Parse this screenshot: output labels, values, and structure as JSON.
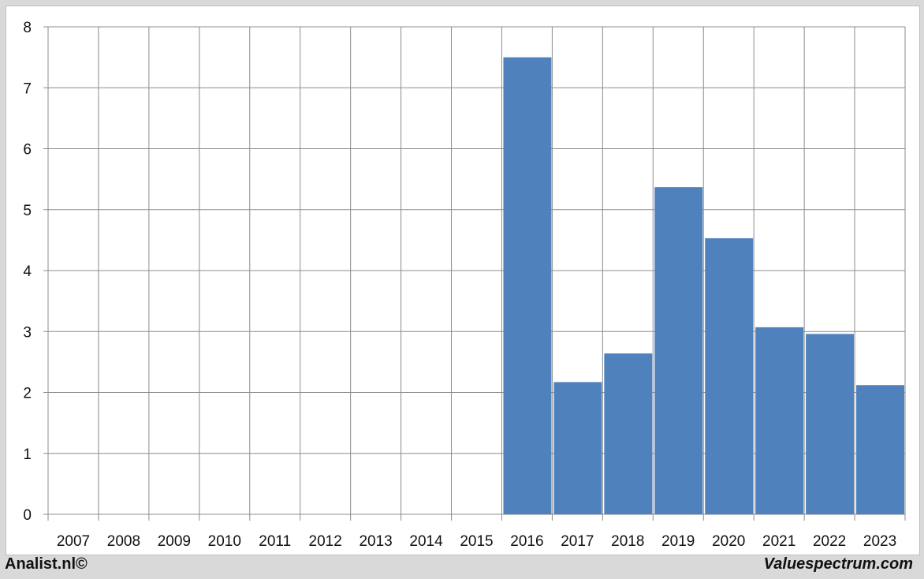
{
  "chart_data": {
    "type": "bar",
    "categories": [
      "2007",
      "2008",
      "2009",
      "2010",
      "2011",
      "2012",
      "2013",
      "2014",
      "2015",
      "2016",
      "2017",
      "2018",
      "2019",
      "2020",
      "2021",
      "2022",
      "2023"
    ],
    "values": [
      null,
      null,
      null,
      null,
      null,
      null,
      null,
      null,
      null,
      7.5,
      2.17,
      2.64,
      5.37,
      4.53,
      3.07,
      2.96,
      2.12
    ],
    "title": "",
    "xlabel": "",
    "ylabel": "",
    "ylim": [
      0,
      8
    ],
    "yticks": [
      0,
      1,
      2,
      3,
      4,
      5,
      6,
      7,
      8
    ],
    "grid": true,
    "bar_color": "#4f81bd"
  },
  "footer": {
    "left": "Analist.nl©",
    "right": "Valuespectrum.com"
  }
}
